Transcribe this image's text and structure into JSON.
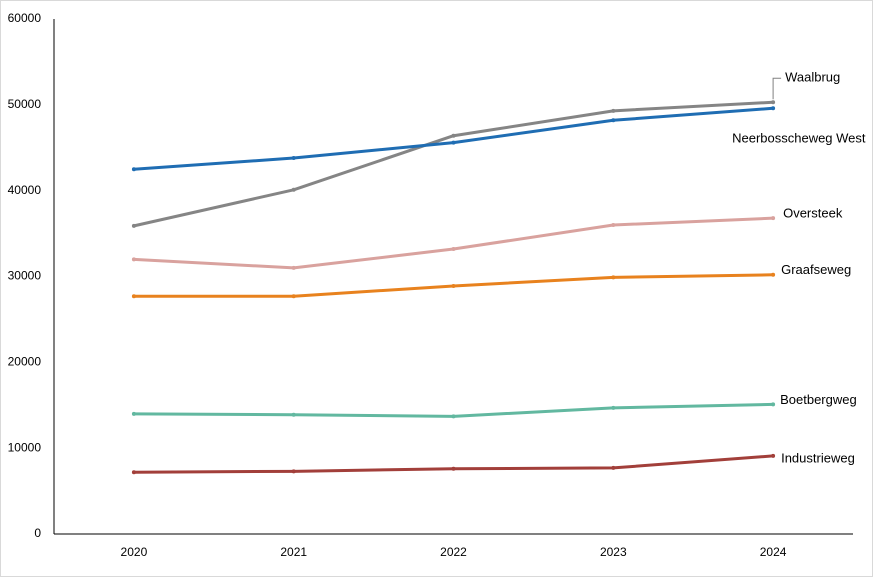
{
  "chart_data": {
    "type": "line",
    "categories": [
      "2020",
      "2021",
      "2022",
      "2023",
      "2024"
    ],
    "series": [
      {
        "name": "Waalbrug",
        "color": "#858585",
        "values": [
          35900,
          40100,
          46400,
          49300,
          50300
        ]
      },
      {
        "name": "Neerbosscheweg West",
        "color": "#1f6db3",
        "values": [
          42500,
          43800,
          45600,
          48200,
          49600
        ]
      },
      {
        "name": "Oversteek",
        "color": "#d9a29e",
        "values": [
          32000,
          31000,
          33200,
          36000,
          36800
        ]
      },
      {
        "name": "Graafseweg",
        "color": "#e8821e",
        "values": [
          27700,
          27700,
          28900,
          29900,
          30200
        ]
      },
      {
        "name": "Boetbergweg",
        "color": "#62b8a0",
        "values": [
          14000,
          13900,
          13700,
          14700,
          15100
        ]
      },
      {
        "name": "Industrieweg",
        "color": "#a23f3a",
        "values": [
          7200,
          7300,
          7600,
          7700,
          9100
        ]
      }
    ],
    "ylim": [
      0,
      60000
    ],
    "yticks": [
      0,
      10000,
      20000,
      30000,
      40000,
      50000,
      60000
    ],
    "grid": false
  }
}
